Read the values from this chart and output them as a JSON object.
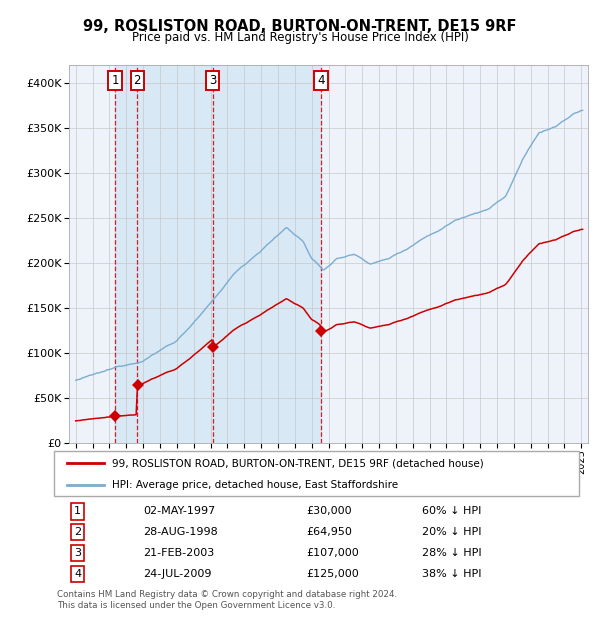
{
  "title": "99, ROSLISTON ROAD, BURTON-ON-TRENT, DE15 9RF",
  "subtitle": "Price paid vs. HM Land Registry's House Price Index (HPI)",
  "footer1": "Contains HM Land Registry data © Crown copyright and database right 2024.",
  "footer2": "This data is licensed under the Open Government Licence v3.0.",
  "legend_line1": "99, ROSLISTON ROAD, BURTON-ON-TRENT, DE15 9RF (detached house)",
  "legend_line2": "HPI: Average price, detached house, East Staffordshire",
  "transactions": [
    {
      "num": 1,
      "date": "02-MAY-1997",
      "price": 30000,
      "pct": "60%",
      "x": 1997.33
    },
    {
      "num": 2,
      "date": "28-AUG-1998",
      "price": 64950,
      "pct": "20%",
      "x": 1998.65
    },
    {
      "num": 3,
      "date": "21-FEB-2003",
      "price": 107000,
      "pct": "28%",
      "x": 2003.13
    },
    {
      "num": 4,
      "date": "24-JUL-2009",
      "price": 125000,
      "pct": "38%",
      "x": 2009.55
    }
  ],
  "price_color": "#cc0000",
  "hpi_color": "#7aadcf",
  "chart_bg": "#eef3fb",
  "shade_color": "#d8e8f4",
  "grid_color": "#c8c8c8",
  "ylim": [
    0,
    420000
  ],
  "xlim_start": 1994.6,
  "xlim_end": 2025.4,
  "yticks": [
    0,
    50000,
    100000,
    150000,
    200000,
    250000,
    300000,
    350000,
    400000
  ]
}
